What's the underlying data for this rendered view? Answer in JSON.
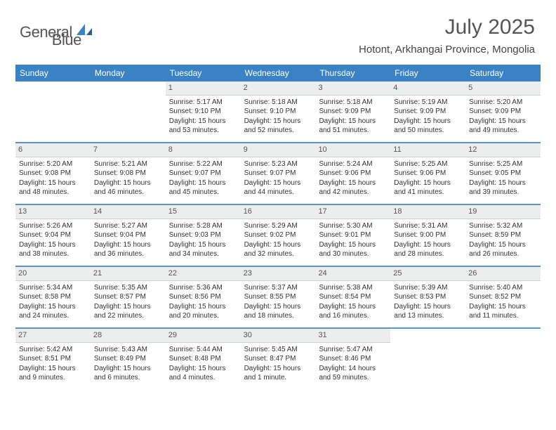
{
  "brand": {
    "word1": "General",
    "word2": "Blue"
  },
  "title": "July 2025",
  "subtitle": "Hotont, Arkhangai Province, Mongolia",
  "colors": {
    "accent": "#3b82c4",
    "day_header_bg": "#eceded",
    "text": "#333333",
    "background": "#ffffff"
  },
  "week_headers": [
    "Sunday",
    "Monday",
    "Tuesday",
    "Wednesday",
    "Thursday",
    "Friday",
    "Saturday"
  ],
  "labels": {
    "sunrise": "Sunrise: ",
    "sunset": "Sunset: ",
    "daylight": "Daylight: "
  },
  "weeks": [
    [
      null,
      null,
      {
        "n": "1",
        "sr": "5:17 AM",
        "ss": "9:10 PM",
        "dl": "15 hours and 53 minutes."
      },
      {
        "n": "2",
        "sr": "5:18 AM",
        "ss": "9:10 PM",
        "dl": "15 hours and 52 minutes."
      },
      {
        "n": "3",
        "sr": "5:18 AM",
        "ss": "9:09 PM",
        "dl": "15 hours and 51 minutes."
      },
      {
        "n": "4",
        "sr": "5:19 AM",
        "ss": "9:09 PM",
        "dl": "15 hours and 50 minutes."
      },
      {
        "n": "5",
        "sr": "5:20 AM",
        "ss": "9:09 PM",
        "dl": "15 hours and 49 minutes."
      }
    ],
    [
      {
        "n": "6",
        "sr": "5:20 AM",
        "ss": "9:08 PM",
        "dl": "15 hours and 48 minutes."
      },
      {
        "n": "7",
        "sr": "5:21 AM",
        "ss": "9:08 PM",
        "dl": "15 hours and 46 minutes."
      },
      {
        "n": "8",
        "sr": "5:22 AM",
        "ss": "9:07 PM",
        "dl": "15 hours and 45 minutes."
      },
      {
        "n": "9",
        "sr": "5:23 AM",
        "ss": "9:07 PM",
        "dl": "15 hours and 44 minutes."
      },
      {
        "n": "10",
        "sr": "5:24 AM",
        "ss": "9:06 PM",
        "dl": "15 hours and 42 minutes."
      },
      {
        "n": "11",
        "sr": "5:25 AM",
        "ss": "9:06 PM",
        "dl": "15 hours and 41 minutes."
      },
      {
        "n": "12",
        "sr": "5:25 AM",
        "ss": "9:05 PM",
        "dl": "15 hours and 39 minutes."
      }
    ],
    [
      {
        "n": "13",
        "sr": "5:26 AM",
        "ss": "9:04 PM",
        "dl": "15 hours and 38 minutes."
      },
      {
        "n": "14",
        "sr": "5:27 AM",
        "ss": "9:04 PM",
        "dl": "15 hours and 36 minutes."
      },
      {
        "n": "15",
        "sr": "5:28 AM",
        "ss": "9:03 PM",
        "dl": "15 hours and 34 minutes."
      },
      {
        "n": "16",
        "sr": "5:29 AM",
        "ss": "9:02 PM",
        "dl": "15 hours and 32 minutes."
      },
      {
        "n": "17",
        "sr": "5:30 AM",
        "ss": "9:01 PM",
        "dl": "15 hours and 30 minutes."
      },
      {
        "n": "18",
        "sr": "5:31 AM",
        "ss": "9:00 PM",
        "dl": "15 hours and 28 minutes."
      },
      {
        "n": "19",
        "sr": "5:32 AM",
        "ss": "8:59 PM",
        "dl": "15 hours and 26 minutes."
      }
    ],
    [
      {
        "n": "20",
        "sr": "5:34 AM",
        "ss": "8:58 PM",
        "dl": "15 hours and 24 minutes."
      },
      {
        "n": "21",
        "sr": "5:35 AM",
        "ss": "8:57 PM",
        "dl": "15 hours and 22 minutes."
      },
      {
        "n": "22",
        "sr": "5:36 AM",
        "ss": "8:56 PM",
        "dl": "15 hours and 20 minutes."
      },
      {
        "n": "23",
        "sr": "5:37 AM",
        "ss": "8:55 PM",
        "dl": "15 hours and 18 minutes."
      },
      {
        "n": "24",
        "sr": "5:38 AM",
        "ss": "8:54 PM",
        "dl": "15 hours and 16 minutes."
      },
      {
        "n": "25",
        "sr": "5:39 AM",
        "ss": "8:53 PM",
        "dl": "15 hours and 13 minutes."
      },
      {
        "n": "26",
        "sr": "5:40 AM",
        "ss": "8:52 PM",
        "dl": "15 hours and 11 minutes."
      }
    ],
    [
      {
        "n": "27",
        "sr": "5:42 AM",
        "ss": "8:51 PM",
        "dl": "15 hours and 9 minutes."
      },
      {
        "n": "28",
        "sr": "5:43 AM",
        "ss": "8:49 PM",
        "dl": "15 hours and 6 minutes."
      },
      {
        "n": "29",
        "sr": "5:44 AM",
        "ss": "8:48 PM",
        "dl": "15 hours and 4 minutes."
      },
      {
        "n": "30",
        "sr": "5:45 AM",
        "ss": "8:47 PM",
        "dl": "15 hours and 1 minute."
      },
      {
        "n": "31",
        "sr": "5:47 AM",
        "ss": "8:46 PM",
        "dl": "14 hours and 59 minutes."
      },
      null,
      null
    ]
  ]
}
